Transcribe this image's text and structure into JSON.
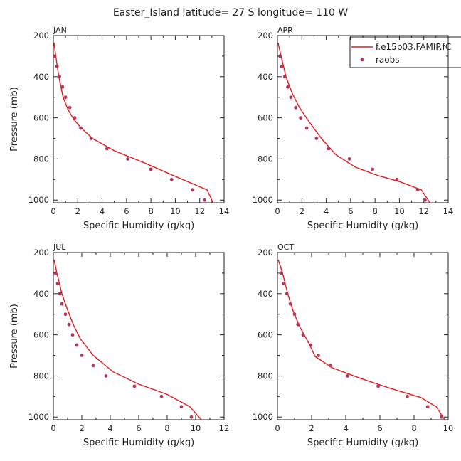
{
  "figure": {
    "title": "Easter_Island   latitude= 27 S longitude= 110 W"
  },
  "legend": {
    "model_label": "f.e15b03.FAMIP.fC",
    "obs_label": "raobs"
  },
  "colors": {
    "model_line": "#e31a1c",
    "obs_marker": "#b5365b",
    "axes": "#222222"
  },
  "chart_data": [
    {
      "type": "line",
      "panel": "JAN",
      "xlabel": "Specific Humidity (g/kg)",
      "ylabel": "Pressure (mb)",
      "xlim": [
        0,
        14
      ],
      "ylim": [
        200,
        1013
      ],
      "y_inverted": true,
      "x_ticks": [
        0,
        2,
        4,
        6,
        8,
        10,
        12,
        14
      ],
      "y_ticks": [
        200,
        400,
        600,
        800,
        1000
      ],
      "grid": false,
      "series": [
        {
          "name": "f.e15b03.FAMIP.fC",
          "kind": "line",
          "x": [
            0.05,
            0.2,
            0.45,
            0.8,
            1.2,
            1.7,
            2.3,
            3.2,
            5.0,
            7.5,
            10.2,
            12.6,
            13.1
          ],
          "y": [
            235,
            300,
            400,
            500,
            560,
            610,
            650,
            700,
            760,
            820,
            890,
            950,
            1013
          ]
        },
        {
          "name": "raobs",
          "kind": "scatter",
          "x": [
            0.1,
            0.3,
            0.5,
            0.75,
            1.0,
            1.35,
            1.75,
            2.25,
            3.1,
            4.4,
            6.1,
            8.0,
            9.7,
            11.4,
            12.4
          ],
          "y": [
            300,
            350,
            400,
            450,
            500,
            550,
            600,
            650,
            700,
            750,
            800,
            850,
            900,
            950,
            1000
          ]
        }
      ]
    },
    {
      "type": "line",
      "panel": "APR",
      "xlabel": "Specific Humidity (g/kg)",
      "ylabel": "Pressure (mb)",
      "xlim": [
        0,
        14
      ],
      "ylim": [
        200,
        1013
      ],
      "y_inverted": true,
      "x_ticks": [
        0,
        2,
        4,
        6,
        8,
        10,
        12,
        14
      ],
      "y_ticks": [
        200,
        400,
        600,
        800,
        1000
      ],
      "grid": false,
      "series": [
        {
          "name": "f.e15b03.FAMIP.fC",
          "kind": "line",
          "x": [
            0.05,
            0.3,
            0.7,
            1.2,
            1.8,
            2.6,
            3.6,
            4.8,
            6.4,
            8.2,
            10.0,
            11.8,
            12.5
          ],
          "y": [
            235,
            300,
            400,
            480,
            550,
            620,
            700,
            780,
            840,
            880,
            910,
            950,
            1013
          ]
        },
        {
          "name": "raobs",
          "kind": "scatter",
          "x": [
            0.2,
            0.35,
            0.6,
            0.85,
            1.1,
            1.5,
            1.9,
            2.4,
            3.2,
            4.2,
            5.9,
            7.8,
            9.8,
            11.5,
            12.1
          ],
          "y": [
            300,
            350,
            400,
            450,
            500,
            550,
            600,
            650,
            700,
            750,
            800,
            850,
            900,
            950,
            1000
          ]
        }
      ]
    },
    {
      "type": "line",
      "panel": "JUL",
      "xlabel": "Specific Humidity (g/kg)",
      "ylabel": "Pressure (mb)",
      "xlim": [
        0,
        12
      ],
      "ylim": [
        200,
        1013
      ],
      "y_inverted": true,
      "x_ticks": [
        0,
        2,
        4,
        6,
        8,
        10,
        12
      ],
      "y_ticks": [
        200,
        400,
        600,
        800,
        1000
      ],
      "grid": false,
      "series": [
        {
          "name": "f.e15b03.FAMIP.fC",
          "kind": "line",
          "x": [
            0.05,
            0.25,
            0.6,
            1.0,
            1.4,
            1.9,
            2.8,
            4.2,
            6.0,
            8.0,
            9.6,
            10.4
          ],
          "y": [
            235,
            300,
            400,
            480,
            550,
            620,
            700,
            780,
            840,
            890,
            950,
            1013
          ]
        },
        {
          "name": "raobs",
          "kind": "scatter",
          "x": [
            0.15,
            0.3,
            0.45,
            0.6,
            0.85,
            1.1,
            1.35,
            1.65,
            2.0,
            2.8,
            3.7,
            5.7,
            7.6,
            9.0,
            9.7
          ],
          "y": [
            300,
            350,
            400,
            450,
            500,
            550,
            600,
            650,
            700,
            750,
            800,
            850,
            900,
            950,
            1000
          ]
        }
      ]
    },
    {
      "type": "line",
      "panel": "OCT",
      "xlabel": "Specific Humidity (g/kg)",
      "ylabel": "Pressure (mb)",
      "xlim": [
        0,
        10
      ],
      "ylim": [
        200,
        1013
      ],
      "y_inverted": true,
      "x_ticks": [
        0,
        2,
        4,
        6,
        8,
        10
      ],
      "y_ticks": [
        200,
        400,
        600,
        800,
        1000
      ],
      "grid": false,
      "series": [
        {
          "name": "f.e15b03.FAMIP.fC",
          "kind": "line",
          "x": [
            0.05,
            0.3,
            0.6,
            0.9,
            1.3,
            1.9,
            2.2,
            3.2,
            4.8,
            6.6,
            8.4,
            9.3,
            9.8
          ],
          "y": [
            235,
            300,
            400,
            480,
            560,
            650,
            705,
            760,
            810,
            860,
            905,
            950,
            1013
          ]
        },
        {
          "name": "raobs",
          "kind": "scatter",
          "x": [
            0.2,
            0.35,
            0.55,
            0.75,
            1.0,
            1.2,
            1.5,
            1.95,
            2.4,
            3.1,
            4.1,
            5.9,
            7.6,
            8.8,
            9.6
          ],
          "y": [
            300,
            350,
            400,
            450,
            500,
            550,
            600,
            650,
            700,
            750,
            800,
            850,
            900,
            950,
            1000
          ]
        }
      ]
    }
  ]
}
